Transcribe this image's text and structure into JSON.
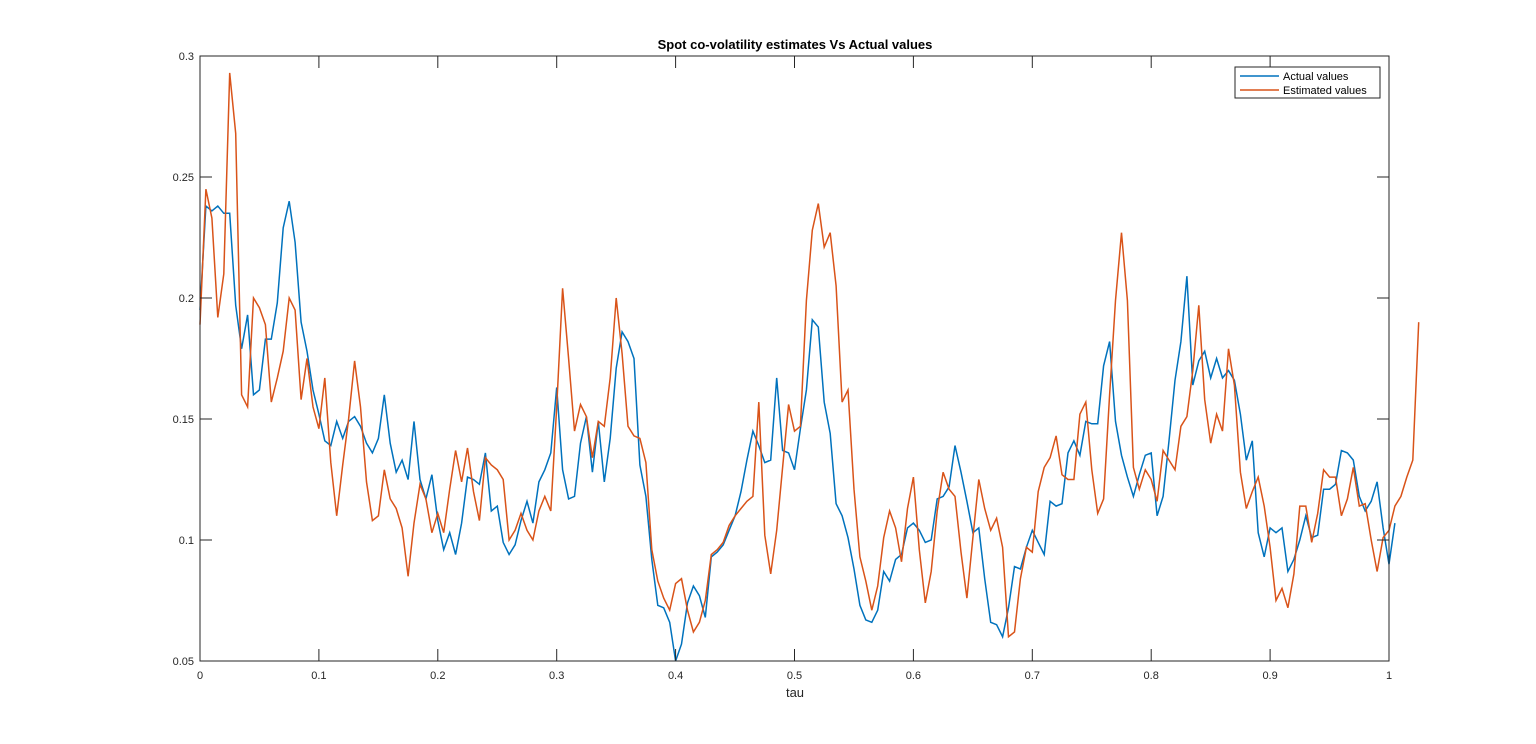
{
  "chart_data": {
    "type": "line",
    "title": "Spot co-volatility estimates Vs Actual values",
    "xlabel": "tau",
    "ylabel": "",
    "xlim": [
      0,
      1
    ],
    "ylim": [
      0.05,
      0.3
    ],
    "grid": false,
    "legend_position": "top-right",
    "xticks": [
      "0",
      "0.1",
      "0.2",
      "0.3",
      "0.4",
      "0.5",
      "0.6",
      "0.7",
      "0.8",
      "0.9",
      "1"
    ],
    "yticks": [
      "0.05",
      "0.1",
      "0.15",
      "0.2",
      "0.25",
      "0.3"
    ],
    "x_step": 0.005,
    "series": [
      {
        "name": "Actual values",
        "color": "#0072BD",
        "values": [
          0.195,
          0.238,
          0.236,
          0.238,
          0.235,
          0.235,
          0.197,
          0.179,
          0.193,
          0.16,
          0.162,
          0.183,
          0.183,
          0.198,
          0.229,
          0.24,
          0.223,
          0.19,
          0.178,
          0.162,
          0.152,
          0.141,
          0.139,
          0.149,
          0.142,
          0.149,
          0.151,
          0.147,
          0.14,
          0.136,
          0.142,
          0.16,
          0.14,
          0.128,
          0.133,
          0.125,
          0.149,
          0.125,
          0.117,
          0.127,
          0.108,
          0.096,
          0.103,
          0.094,
          0.107,
          0.126,
          0.125,
          0.123,
          0.136,
          0.112,
          0.114,
          0.099,
          0.094,
          0.098,
          0.108,
          0.116,
          0.107,
          0.124,
          0.129,
          0.136,
          0.163,
          0.129,
          0.117,
          0.118,
          0.14,
          0.151,
          0.128,
          0.149,
          0.124,
          0.142,
          0.171,
          0.186,
          0.182,
          0.175,
          0.131,
          0.118,
          0.092,
          0.073,
          0.072,
          0.066,
          0.05,
          0.057,
          0.074,
          0.081,
          0.077,
          0.068,
          0.093,
          0.095,
          0.098,
          0.104,
          0.11,
          0.12,
          0.133,
          0.145,
          0.139,
          0.132,
          0.133,
          0.167,
          0.137,
          0.136,
          0.129,
          0.146,
          0.162,
          0.191,
          0.188,
          0.157,
          0.144,
          0.115,
          0.11,
          0.101,
          0.088,
          0.073,
          0.067,
          0.066,
          0.071,
          0.087,
          0.083,
          0.092,
          0.094,
          0.105,
          0.107,
          0.104,
          0.099,
          0.1,
          0.117,
          0.118,
          0.122,
          0.139,
          0.128,
          0.116,
          0.103,
          0.105,
          0.084,
          0.066,
          0.065,
          0.06,
          0.072,
          0.089,
          0.088,
          0.097,
          0.104,
          0.099,
          0.094,
          0.116,
          0.114,
          0.115,
          0.136,
          0.141,
          0.135,
          0.149,
          0.148,
          0.148,
          0.172,
          0.182,
          0.149,
          0.135,
          0.126,
          0.118,
          0.127,
          0.135,
          0.136,
          0.11,
          0.118,
          0.141,
          0.166,
          0.182,
          0.209,
          0.164,
          0.174,
          0.178,
          0.167,
          0.175,
          0.167,
          0.17,
          0.166,
          0.152,
          0.133,
          0.141,
          0.103,
          0.093,
          0.105,
          0.103,
          0.105,
          0.087,
          0.092,
          0.1,
          0.11,
          0.101,
          0.102,
          0.121,
          0.121,
          0.123,
          0.137,
          0.136,
          0.133,
          0.118,
          0.112,
          0.116,
          0.124,
          0.105,
          0.09,
          0.107
        ]
      },
      {
        "name": "Estimated values",
        "color": "#D95319",
        "values": [
          0.189,
          0.245,
          0.233,
          0.192,
          0.21,
          0.293,
          0.268,
          0.16,
          0.155,
          0.2,
          0.196,
          0.189,
          0.157,
          0.167,
          0.178,
          0.2,
          0.195,
          0.158,
          0.175,
          0.155,
          0.146,
          0.167,
          0.132,
          0.11,
          0.131,
          0.15,
          0.174,
          0.155,
          0.124,
          0.108,
          0.11,
          0.129,
          0.117,
          0.113,
          0.105,
          0.085,
          0.107,
          0.123,
          0.117,
          0.103,
          0.111,
          0.103,
          0.121,
          0.137,
          0.124,
          0.138,
          0.12,
          0.108,
          0.134,
          0.131,
          0.129,
          0.125,
          0.1,
          0.104,
          0.111,
          0.104,
          0.1,
          0.112,
          0.118,
          0.112,
          0.155,
          0.204,
          0.175,
          0.145,
          0.156,
          0.151,
          0.134,
          0.149,
          0.147,
          0.167,
          0.2,
          0.177,
          0.147,
          0.143,
          0.142,
          0.132,
          0.096,
          0.083,
          0.076,
          0.071,
          0.082,
          0.084,
          0.071,
          0.062,
          0.066,
          0.075,
          0.094,
          0.096,
          0.099,
          0.106,
          0.11,
          0.113,
          0.116,
          0.118,
          0.157,
          0.102,
          0.086,
          0.104,
          0.13,
          0.156,
          0.145,
          0.147,
          0.199,
          0.228,
          0.239,
          0.221,
          0.227,
          0.205,
          0.157,
          0.162,
          0.121,
          0.093,
          0.083,
          0.071,
          0.081,
          0.101,
          0.112,
          0.105,
          0.091,
          0.113,
          0.126,
          0.096,
          0.074,
          0.087,
          0.112,
          0.128,
          0.121,
          0.118,
          0.095,
          0.076,
          0.101,
          0.125,
          0.113,
          0.104,
          0.109,
          0.097,
          0.06,
          0.062,
          0.084,
          0.097,
          0.095,
          0.12,
          0.13,
          0.134,
          0.143,
          0.127,
          0.125,
          0.125,
          0.152,
          0.157,
          0.129,
          0.111,
          0.117,
          0.16,
          0.199,
          0.227,
          0.199,
          0.13,
          0.121,
          0.129,
          0.125,
          0.116,
          0.137,
          0.133,
          0.129,
          0.147,
          0.151,
          0.17,
          0.197,
          0.158,
          0.14,
          0.152,
          0.145,
          0.179,
          0.164,
          0.128,
          0.113,
          0.12,
          0.126,
          0.114,
          0.097,
          0.075,
          0.08,
          0.072,
          0.086,
          0.114,
          0.114,
          0.099,
          0.111,
          0.129,
          0.126,
          0.126,
          0.11,
          0.117,
          0.13,
          0.114,
          0.115,
          0.1,
          0.087,
          0.101,
          0.104,
          0.114,
          0.118,
          0.126,
          0.133,
          0.19
        ]
      }
    ]
  },
  "legend": {
    "items": [
      {
        "label": "Actual values",
        "color": "#0072BD"
      },
      {
        "label": "Estimated values",
        "color": "#D95319"
      }
    ]
  }
}
